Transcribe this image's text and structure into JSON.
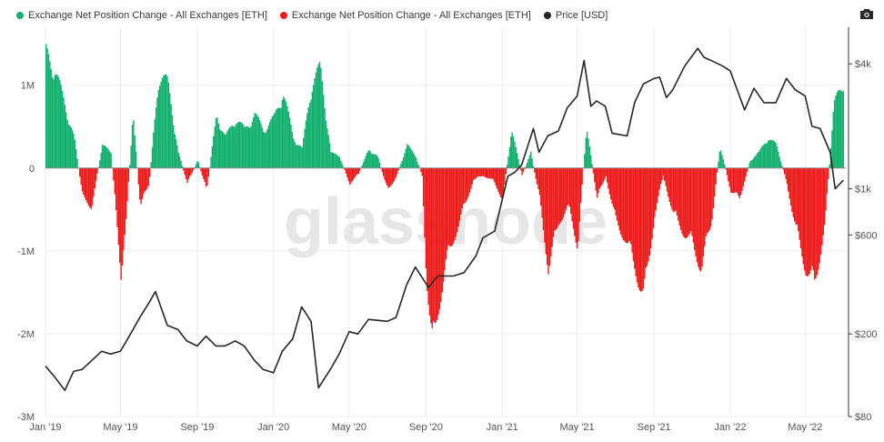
{
  "colors": {
    "inflow": "#12b06e",
    "outflow": "#ee1b1b",
    "price": "#262626",
    "grid": "#ececec",
    "axis": "#555555"
  },
  "toolbar": {
    "camera_icon": "camera-icon"
  },
  "chart_data": {
    "type": "bar",
    "legend": [
      {
        "key": "inflow",
        "label": "Exchange Net Position Change - All Exchanges [ETH]",
        "color": "#12b06e"
      },
      {
        "key": "outflow",
        "label": "Exchange Net Position Change - All Exchanges [ETH]",
        "color": "#ee1b1b"
      },
      {
        "key": "price",
        "label": "Price [USD]",
        "color": "#262626"
      }
    ],
    "x_tick_labels": [
      "Jan '19",
      "May '19",
      "Sep '19",
      "Jan '20",
      "May '20",
      "Sep '20",
      "Jan '21",
      "May '21",
      "Sep '21",
      "Jan '22",
      "May '22"
    ],
    "x_range": [
      "2019-01-01",
      "2022-07-05"
    ],
    "y_left": {
      "ticks": [
        1000000,
        0,
        -1000000,
        -2000000,
        -3000000
      ],
      "tick_labels": [
        "1M",
        "0",
        "-1M",
        "-2M",
        "-3M"
      ],
      "range": [
        -3000000,
        1700000
      ]
    },
    "y_right": {
      "scale": "log",
      "ticks": [
        4000,
        1000,
        600,
        200,
        80
      ],
      "tick_labels": [
        "$4k",
        "$1k",
        "$600",
        "$200",
        "$80"
      ],
      "range": [
        80,
        6000
      ]
    },
    "watermark": "glassnode",
    "net_position_change": {
      "dates": [
        "2019-01-01",
        "2019-01-15",
        "2019-02-01",
        "2019-02-15",
        "2019-03-01",
        "2019-03-15",
        "2019-04-01",
        "2019-04-15",
        "2019-05-01",
        "2019-05-10",
        "2019-05-20",
        "2019-06-01",
        "2019-06-15",
        "2019-07-01",
        "2019-07-15",
        "2019-08-01",
        "2019-08-15",
        "2019-09-01",
        "2019-09-15",
        "2019-10-01",
        "2019-10-15",
        "2019-11-01",
        "2019-11-15",
        "2019-12-01",
        "2019-12-15",
        "2020-01-01",
        "2020-01-15",
        "2020-02-01",
        "2020-02-15",
        "2020-03-01",
        "2020-03-15",
        "2020-04-01",
        "2020-04-15",
        "2020-05-01",
        "2020-05-15",
        "2020-06-01",
        "2020-06-15",
        "2020-07-01",
        "2020-07-15",
        "2020-08-01",
        "2020-08-15",
        "2020-08-25",
        "2020-09-01",
        "2020-09-10",
        "2020-09-20",
        "2020-10-01",
        "2020-10-15",
        "2020-11-01",
        "2020-11-15",
        "2020-12-01",
        "2020-12-15",
        "2021-01-01",
        "2021-01-15",
        "2021-02-01",
        "2021-02-15",
        "2021-03-01",
        "2021-03-15",
        "2021-04-01",
        "2021-04-15",
        "2021-05-01",
        "2021-05-15",
        "2021-06-01",
        "2021-06-15",
        "2021-07-01",
        "2021-07-15",
        "2021-08-01",
        "2021-08-15",
        "2021-09-01",
        "2021-09-15",
        "2021-10-01",
        "2021-10-15",
        "2021-11-01",
        "2021-11-15",
        "2021-12-01",
        "2021-12-15",
        "2022-01-01",
        "2022-01-15",
        "2022-02-01",
        "2022-02-15",
        "2022-03-01",
        "2022-03-15",
        "2022-04-01",
        "2022-04-15",
        "2022-05-01",
        "2022-05-15",
        "2022-06-01",
        "2022-06-15",
        "2022-07-01"
      ],
      "values": [
        1500000,
        1300000,
        800000,
        400000,
        -400000,
        -500000,
        300000,
        200000,
        -1350000,
        -600000,
        700000,
        -500000,
        -200000,
        1250000,
        1100000,
        200000,
        -200000,
        100000,
        -300000,
        700000,
        400000,
        650000,
        500000,
        700000,
        500000,
        650000,
        1000000,
        400000,
        250000,
        1100000,
        1300000,
        200000,
        150000,
        -200000,
        -80000,
        250000,
        150000,
        -300000,
        -100000,
        300000,
        150000,
        -100000,
        -1400000,
        -2400000,
        -1800000,
        -1300000,
        -900000,
        -500000,
        -150000,
        -100000,
        -150000,
        -400000,
        500000,
        -100000,
        200000,
        -400000,
        -1300000,
        -700000,
        -500000,
        -1000000,
        550000,
        -400000,
        -100000,
        -700000,
        -900000,
        -1300000,
        -1700000,
        -600000,
        -100000,
        -600000,
        -800000,
        -1000000,
        -1300000,
        -700000,
        300000,
        -300000,
        -400000,
        100000,
        200000,
        400000,
        300000,
        -200000,
        -800000,
        -1300000,
        -1550000,
        -700000,
        800000,
        1200000
      ]
    },
    "price_usd": {
      "dates": [
        "2019-01-01",
        "2019-01-15",
        "2019-02-01",
        "2019-02-15",
        "2019-03-01",
        "2019-04-01",
        "2019-04-15",
        "2019-05-01",
        "2019-05-15",
        "2019-06-01",
        "2019-06-15",
        "2019-06-26",
        "2019-07-15",
        "2019-08-01",
        "2019-08-15",
        "2019-09-01",
        "2019-09-15",
        "2019-10-01",
        "2019-10-15",
        "2019-11-01",
        "2019-11-15",
        "2019-12-01",
        "2019-12-15",
        "2020-01-01",
        "2020-01-15",
        "2020-02-01",
        "2020-02-15",
        "2020-03-01",
        "2020-03-13",
        "2020-04-01",
        "2020-04-15",
        "2020-05-01",
        "2020-05-15",
        "2020-06-01",
        "2020-07-01",
        "2020-07-15",
        "2020-08-01",
        "2020-08-15",
        "2020-09-05",
        "2020-09-20",
        "2020-10-15",
        "2020-11-01",
        "2020-11-20",
        "2020-12-01",
        "2020-12-20",
        "2021-01-10",
        "2021-01-21",
        "2021-02-01",
        "2021-02-20",
        "2021-03-01",
        "2021-03-15",
        "2021-04-01",
        "2021-04-15",
        "2021-05-01",
        "2021-05-12",
        "2021-05-23",
        "2021-06-01",
        "2021-06-15",
        "2021-06-26",
        "2021-07-20",
        "2021-08-01",
        "2021-08-15",
        "2021-09-01",
        "2021-09-10",
        "2021-09-21",
        "2021-10-01",
        "2021-10-20",
        "2021-11-10",
        "2021-11-20",
        "2021-12-05",
        "2021-12-20",
        "2022-01-01",
        "2022-01-24",
        "2022-02-08",
        "2022-02-24",
        "2022-03-15",
        "2022-04-01",
        "2022-04-15",
        "2022-05-01",
        "2022-05-12",
        "2022-05-25",
        "2022-06-10",
        "2022-06-18",
        "2022-07-01"
      ],
      "values": [
        140,
        125,
        107,
        132,
        135,
        165,
        160,
        165,
        195,
        240,
        280,
        320,
        220,
        210,
        185,
        175,
        195,
        175,
        175,
        185,
        175,
        150,
        135,
        130,
        165,
        190,
        270,
        230,
        110,
        135,
        160,
        205,
        200,
        235,
        230,
        240,
        345,
        420,
        335,
        380,
        380,
        395,
        475,
        580,
        625,
        1150,
        1200,
        1300,
        1950,
        1500,
        1800,
        1900,
        2450,
        2800,
        4150,
        2500,
        2650,
        2500,
        1850,
        1800,
        2600,
        3200,
        3400,
        3450,
        2750,
        3000,
        3900,
        4750,
        4300,
        4100,
        3900,
        3700,
        2400,
        3050,
        2600,
        2600,
        3400,
        3000,
        2800,
        2000,
        1950,
        1500,
        1000,
        1100
      ]
    }
  }
}
